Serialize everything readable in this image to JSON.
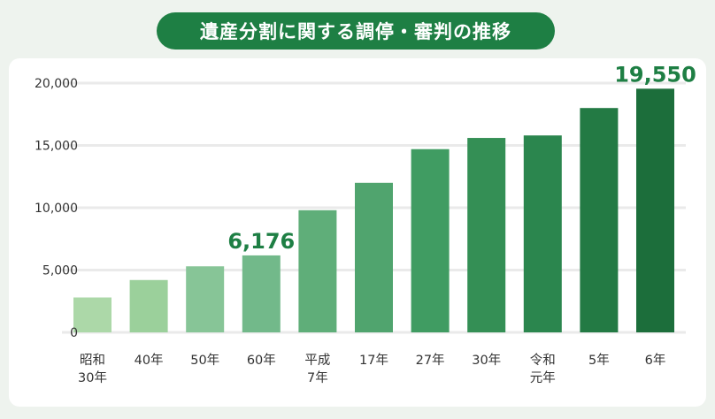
{
  "chart_data": {
    "type": "bar",
    "title": "遺産分割に関する調停・審判の推移",
    "categories": [
      [
        "昭和",
        "30年"
      ],
      [
        "40年"
      ],
      [
        "50年"
      ],
      [
        "60年"
      ],
      [
        "平成",
        "7年"
      ],
      [
        "17年"
      ],
      [
        "27年"
      ],
      [
        "30年"
      ],
      [
        "令和",
        "元年"
      ],
      [
        "5年"
      ],
      [
        "6年"
      ]
    ],
    "values": [
      2800,
      4200,
      5300,
      6176,
      9800,
      12000,
      14700,
      15600,
      15800,
      18000,
      19550
    ],
    "data_labels": [
      {
        "index": 3,
        "text": "6,176"
      },
      {
        "index": 10,
        "text": "19,550"
      }
    ],
    "y_ticks": [
      {
        "value": 0,
        "label": "0"
      },
      {
        "value": 5000,
        "label": "5,000"
      },
      {
        "value": 10000,
        "label": "10,000"
      },
      {
        "value": 15000,
        "label": "15,000"
      },
      {
        "value": 20000,
        "label": "20,000"
      }
    ],
    "ylim": [
      0,
      20000
    ],
    "grid": true,
    "colors": [
      "#acd8a8",
      "#9bd09b",
      "#87c597",
      "#72b98a",
      "#5fae79",
      "#50a46e",
      "#409c62",
      "#348f55",
      "#2b864e",
      "#237a44",
      "#1c6e3b"
    ]
  }
}
